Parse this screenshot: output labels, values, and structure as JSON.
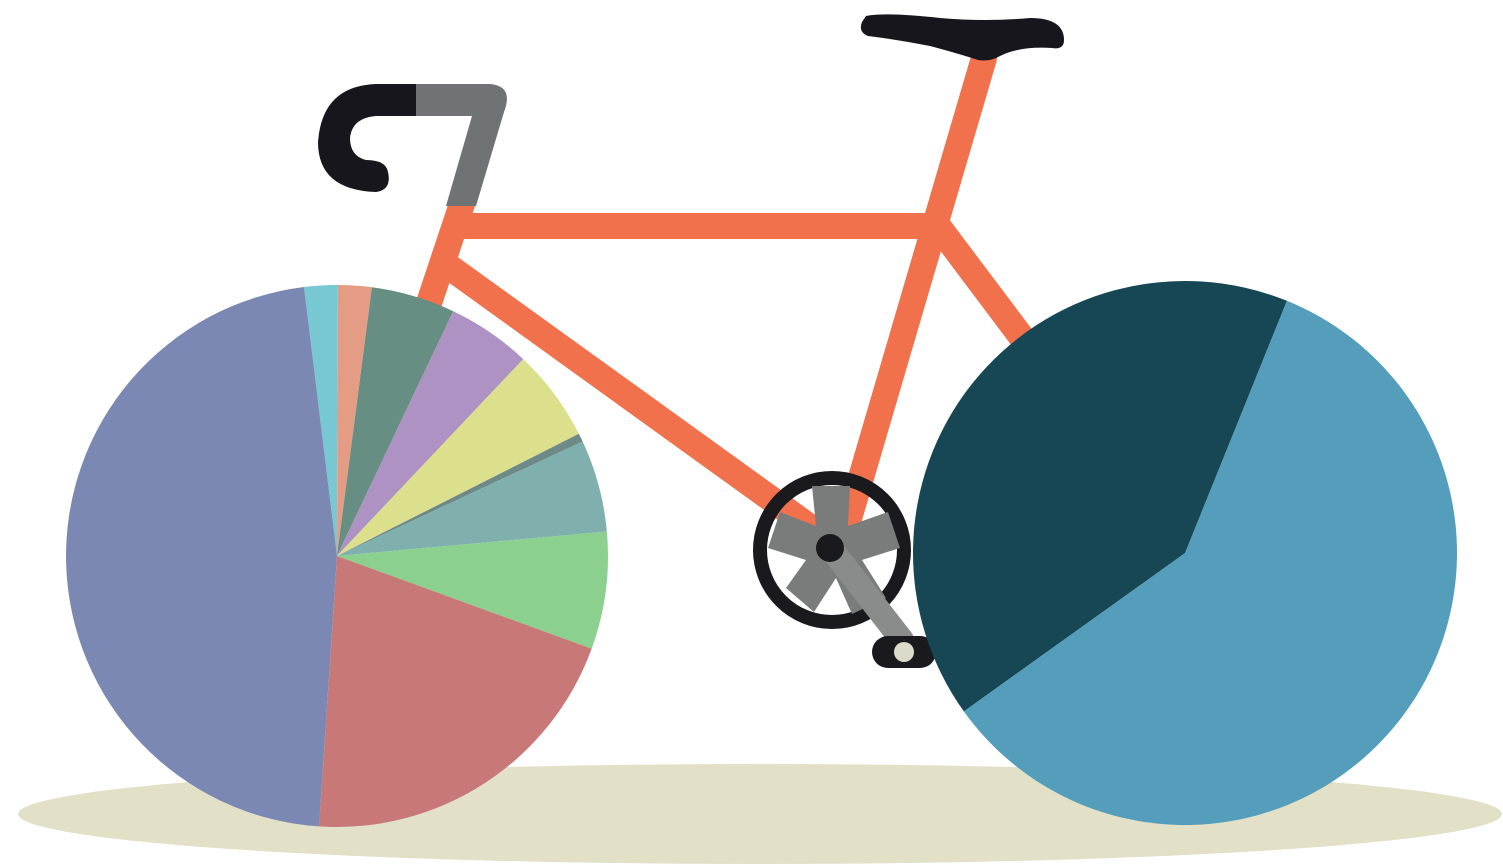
{
  "colors": {
    "background": "#ffffff",
    "ground": "#e2e0c6",
    "frame": "#f0714c",
    "handlebar_tape": "#16161c",
    "stem": "#707373",
    "saddle": "#16161c",
    "chainring": "#1a1a1e",
    "crank": "#8a8c8c",
    "crank_hub": "#7a7c7c",
    "pedal_cap": "#dcdacb"
  },
  "chart_data": [
    {
      "type": "pie",
      "wheel": "front",
      "title": "",
      "start_angle_deg": 263,
      "direction": "clockwise",
      "slices": [
        {
          "value": 2.0,
          "color": "#78c8d4"
        },
        {
          "value": 2.0,
          "color": "#e59c84"
        },
        {
          "value": 5.0,
          "color": "#668e83"
        },
        {
          "value": 5.0,
          "color": "#ad92c3"
        },
        {
          "value": 5.5,
          "color": "#dcdf8c"
        },
        {
          "value": 0.5,
          "color": "#6e8a86"
        },
        {
          "value": 5.5,
          "color": "#7fb0ae"
        },
        {
          "value": 7.0,
          "color": "#8cd090"
        },
        {
          "value": 20.5,
          "color": "#c97878"
        },
        {
          "value": 47.0,
          "color": "#7b88b3"
        }
      ]
    },
    {
      "type": "pie",
      "wheel": "rear",
      "title": "",
      "start_angle_deg": 292,
      "direction": "clockwise",
      "slices": [
        {
          "value": 59.0,
          "color": "#549ebc"
        },
        {
          "value": 41.0,
          "color": "#174654"
        }
      ]
    }
  ]
}
